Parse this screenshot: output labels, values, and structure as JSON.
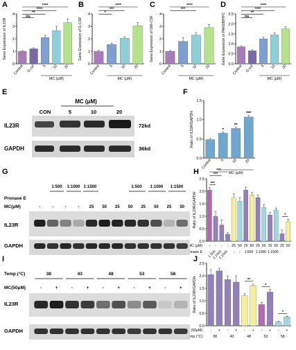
{
  "panel_labels": [
    "A",
    "B",
    "C",
    "D",
    "E",
    "F",
    "G",
    "H",
    "I",
    "J"
  ],
  "colors": {
    "control": "#a77cb8",
    "gcsf": "#7b68a6",
    "mc5": "#7e9fd0",
    "mc10": "#8fd0d8",
    "mc20": "#b4e38c",
    "f_bar": "#6fa7cf",
    "purple": "#9181b8",
    "pink": "#b268b3",
    "yellow": "#f6ef9a",
    "cyan": "#9fd8de"
  },
  "chart_data": [
    {
      "id": "A",
      "type": "bar",
      "categories": [
        "Control",
        "G-csf",
        "5",
        "10",
        "20"
      ],
      "values": [
        1.0,
        1.2,
        2.1,
        2.65,
        3.3
      ],
      "errors": [
        0.05,
        0.08,
        0.18,
        0.35,
        0.3
      ],
      "ylabel": "Gene Expression of IL23R",
      "ylim": [
        0,
        4
      ],
      "yticks": [
        "0",
        "1",
        "2",
        "3",
        "4"
      ],
      "group_label": "MC (μM)",
      "sig": [
        {
          "from": 0,
          "to": 4,
          "text": "****"
        },
        {
          "from": 0,
          "to": 3,
          "text": "****"
        },
        {
          "from": 0,
          "to": 2,
          "text": "**"
        },
        {
          "from": 0,
          "to": 1,
          "text": "ns"
        }
      ]
    },
    {
      "id": "B",
      "type": "bar",
      "categories": [
        "Control",
        "5",
        "10",
        "20"
      ],
      "values": [
        1.0,
        1.55,
        2.05,
        3.05
      ],
      "errors": [
        0.08,
        0.1,
        0.12,
        0.25
      ],
      "ylabel": "Gene Expression of G-CSF",
      "ylim": [
        0,
        4
      ],
      "yticks": [
        "0",
        "1",
        "2",
        "3",
        "4"
      ],
      "group_label": "MC (μM)",
      "sig": [
        {
          "from": 0,
          "to": 3,
          "text": "****"
        },
        {
          "from": 0,
          "to": 2,
          "text": "***"
        },
        {
          "from": 0,
          "to": 1,
          "text": "*"
        }
      ]
    },
    {
      "id": "C",
      "type": "bar",
      "categories": [
        "Control",
        "5",
        "10",
        "20"
      ],
      "values": [
        1.0,
        1.8,
        2.3,
        2.9
      ],
      "errors": [
        0.05,
        0.3,
        0.2,
        0.25
      ],
      "ylabel": "Gene Expression of GM-CSF",
      "ylim": [
        0,
        4
      ],
      "yticks": [
        "0",
        "1",
        "2",
        "3",
        "4"
      ],
      "group_label": "MC (μM)",
      "sig": [
        {
          "from": 0,
          "to": 3,
          "text": "****"
        },
        {
          "from": 0,
          "to": 2,
          "text": "***"
        }
      ]
    },
    {
      "id": "D",
      "type": "bar",
      "categories": [
        "Control",
        "G-csf",
        "5",
        "10",
        "20"
      ],
      "values": [
        0.85,
        0.65,
        1.25,
        1.45,
        1.75
      ],
      "errors": [
        0.05,
        0.05,
        0.08,
        0.1,
        0.1
      ],
      "ylabel": "Gene Expression of PAK6/BPIFC",
      "ylim": [
        0,
        2.5
      ],
      "yticks": [
        "0.0",
        "0.5",
        "1.0",
        "1.5",
        "2.0",
        "2.5"
      ],
      "group_label": "MC (μM)",
      "sig": [
        {
          "from": 0,
          "to": 4,
          "text": "****"
        },
        {
          "from": 0,
          "to": 3,
          "text": "****"
        },
        {
          "from": 0,
          "to": 2,
          "text": "**"
        },
        {
          "from": 0,
          "to": 1,
          "text": "ns"
        }
      ]
    },
    {
      "id": "F",
      "type": "bar",
      "categories": [
        "Control",
        "5",
        "10",
        "20"
      ],
      "values": [
        0.48,
        0.65,
        0.77,
        1.07
      ],
      "errors": [
        0.03,
        0.03,
        0.03,
        0.04
      ],
      "ylabel": "Ratio of IL23R/GAPDH",
      "ylim": [
        0,
        1.5
      ],
      "yticks": [
        "0.0",
        "0.5",
        "1.0",
        "1.5"
      ],
      "group_label": "MC (μM)",
      "bar_labels": [
        "",
        "*",
        "**",
        "***"
      ]
    },
    {
      "id": "H",
      "type": "bar",
      "values": [
        2.05,
        1.0,
        0.65,
        0.28,
        1.75,
        1.6,
        2.05,
        1.85,
        1.75,
        1.35,
        1.05,
        1.25,
        0.3,
        0.78
      ],
      "errors": [
        0.1,
        0.2,
        0.2,
        0.06,
        0.15,
        0.15,
        0.12,
        0.1,
        0.1,
        0.12,
        0.1,
        0.08,
        0.15,
        0.1
      ],
      "ylabel": "Ratio of IL23R/GAPDH",
      "ylim": [
        0,
        2.5
      ],
      "yticks": [
        "0.0",
        "0.5",
        "1.0",
        "1.5",
        "2.0",
        "2.5"
      ],
      "mc_row": [
        "-",
        "-",
        "-",
        "-",
        "25",
        "50",
        "25",
        "50",
        "25",
        "50",
        "25",
        "50",
        "25",
        "50"
      ],
      "pronase_row": [
        "-",
        "1:500",
        "1:1000",
        "1:1500",
        "-",
        "-",
        "1:500",
        "",
        "1:1000",
        "",
        "1:1500",
        "",
        "",
        ""
      ],
      "row_labels": [
        "MC (μM)",
        "Pronase E"
      ],
      "sig": [
        {
          "from": 0,
          "to": 3,
          "text": "***"
        },
        {
          "from": 0,
          "to": 2,
          "text": "***"
        },
        {
          "from": 0,
          "to": 1,
          "text": "***"
        },
        {
          "from": 12,
          "to": 13,
          "text": "*"
        }
      ]
    },
    {
      "id": "J",
      "type": "bar",
      "values": [
        2.05,
        2.2,
        1.85,
        1.75,
        1.2,
        1.6,
        0.85,
        1.35,
        0.15,
        0.35
      ],
      "errors": [
        0.2,
        0.1,
        0.15,
        0.25,
        0.08,
        0.07,
        0.08,
        0.1,
        0.03,
        0.03
      ],
      "ylabel": "Ratio of IL23R/GAPDH",
      "ylim": [
        0,
        2.5
      ],
      "yticks": [
        "0.0",
        "0.5",
        "1.0",
        "1.5",
        "2.0",
        "2.5"
      ],
      "mc_row": [
        "-",
        "+",
        "-",
        "+",
        "-",
        "+",
        "-",
        "+",
        "-",
        "+"
      ],
      "temp_row": [
        "38",
        "43",
        "48",
        "53",
        "58"
      ],
      "row_labels": [
        "MC (50μM)",
        "Temp (°C)"
      ],
      "sig": [
        {
          "from": 4,
          "to": 5,
          "text": "**"
        },
        {
          "from": 6,
          "to": 7,
          "text": "*"
        },
        {
          "from": 8,
          "to": 9,
          "text": "*"
        }
      ]
    }
  ],
  "blot_e": {
    "header": "MC (μM)",
    "lanes": [
      "CON",
      "5",
      "10",
      "20"
    ],
    "rows": [
      {
        "label": "IL23R",
        "kd": "72kd"
      },
      {
        "label": "GAPDH",
        "kd": "36kd"
      }
    ]
  },
  "blot_g": {
    "row_pronase": "Pronase E",
    "row_mc": "MC(μM)",
    "pronase_top": [
      "1:500",
      "1:1000",
      "1:1500",
      "1:500",
      "1:1000",
      "1:1500"
    ],
    "mc_vals": [
      "-",
      "-",
      "-",
      "-",
      "25",
      "50",
      "25",
      "50",
      "25",
      "50",
      "25",
      "50"
    ],
    "rows": [
      "IL23R",
      "GAPDH"
    ]
  },
  "blot_i": {
    "row_temp": "Temp (°C)",
    "row_mc": "MC(50μM)",
    "temps": [
      "38",
      "43",
      "48",
      "53",
      "58"
    ],
    "mc_vals": [
      "-",
      "+",
      "-",
      "+",
      "-",
      "+",
      "-",
      "+",
      "-",
      "+"
    ],
    "rows": [
      "IL23R",
      "GAPDH"
    ]
  }
}
